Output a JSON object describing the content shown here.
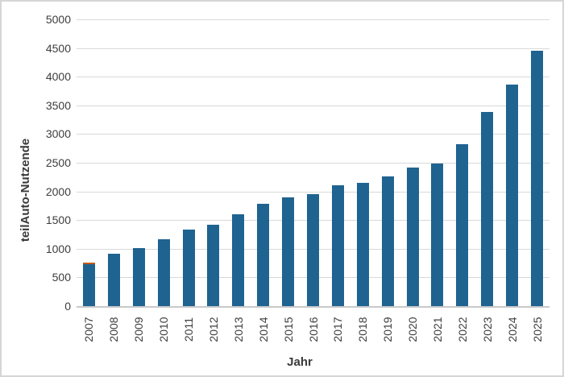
{
  "chart_data": {
    "type": "bar",
    "title": "",
    "xlabel": "Jahr",
    "ylabel": "teilAuto-Nutzende",
    "categories": [
      "2007",
      "2008",
      "2009",
      "2010",
      "2011",
      "2012",
      "2013",
      "2014",
      "2015",
      "2016",
      "2017",
      "2018",
      "2019",
      "2020",
      "2021",
      "2022",
      "2023",
      "2024",
      "2025"
    ],
    "values": [
      760,
      920,
      1010,
      1170,
      1330,
      1420,
      1600,
      1790,
      1890,
      1950,
      2100,
      2150,
      2260,
      2410,
      2480,
      2830,
      3380,
      3860,
      4450
    ],
    "ylim": [
      0,
      5000
    ],
    "ytick_step": 500,
    "ytick_labels": [
      "0",
      "500",
      "1000",
      "1500",
      "2000",
      "2500",
      "3000",
      "3500",
      "4000",
      "4500",
      "5000"
    ],
    "grid": true,
    "legend": false,
    "bar_color": "#1f6390",
    "gridline_color": "#d9d9d9",
    "axisline_color": "#c9c9c9",
    "text_color": "#3d3d3d",
    "annotations": [
      {
        "category": "2007",
        "detail": "thin orange cap segment on top of bar",
        "color": "#c55a11"
      }
    ]
  }
}
